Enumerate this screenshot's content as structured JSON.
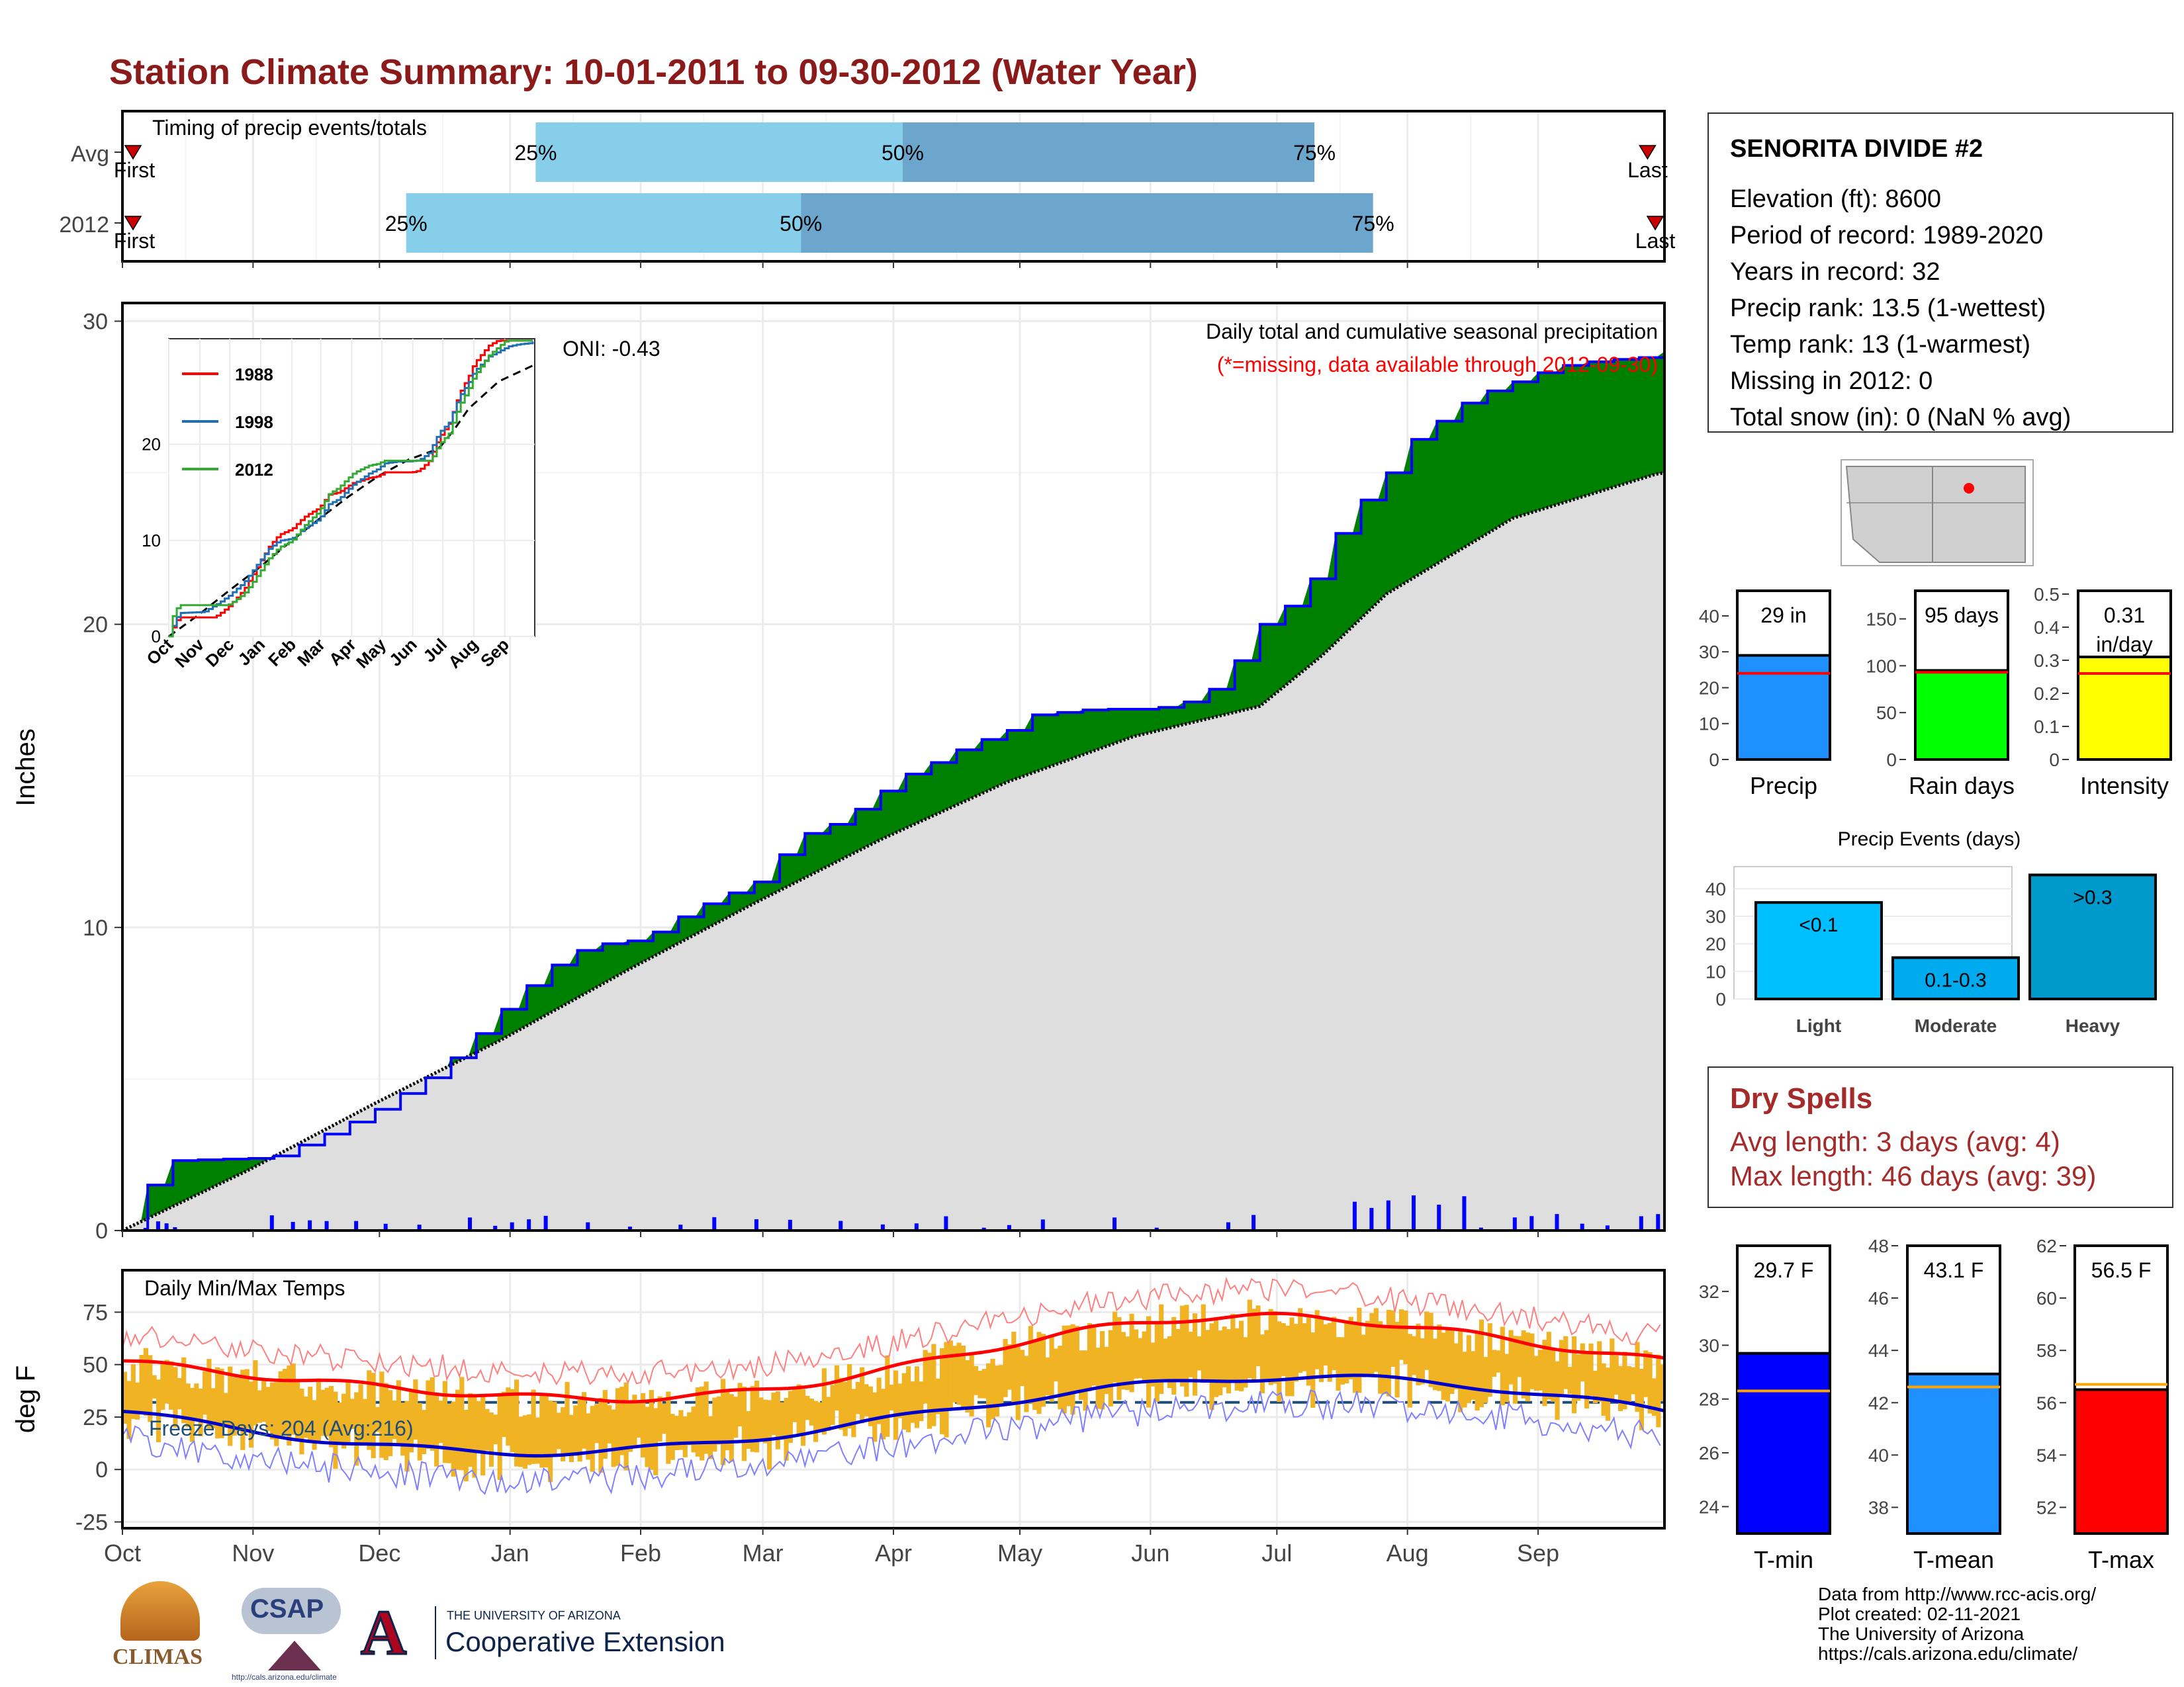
{
  "title": "Station Climate Summary: 10-01-2011 to 09-30-2012 (Water Year)",
  "colors": {
    "title": "#8b1a1a",
    "precip_fill": "#008000",
    "precip_line": "#0000ff",
    "avg_fill": "#dedede",
    "q_light": "#87ceeb",
    "q_dark": "#6ca6cd",
    "temp_bar": "#f0b323",
    "tmax_avg": "#ff0000",
    "tmin_avg": "#0000cd",
    "dry_text": "#a52a2a"
  },
  "months": [
    "Oct",
    "Nov",
    "Dec",
    "Jan",
    "Feb",
    "Mar",
    "Apr",
    "May",
    "Jun",
    "Jul",
    "Aug",
    "Sep"
  ],
  "timing": {
    "label": "Timing of precip events/totals",
    "rows": [
      {
        "label": "Avg",
        "q25": 0.268,
        "q50": 0.506,
        "q75": 0.773,
        "first_label": "First",
        "last_label": "Last",
        "first_pos": 0.0,
        "last_pos": 0.989
      },
      {
        "label": "2012",
        "q25": 0.184,
        "q50": 0.44,
        "q75": 0.811,
        "first_label": "First",
        "last_label": "Last",
        "first_pos": 0.0,
        "last_pos": 0.994
      }
    ],
    "q_labels": [
      "25%",
      "50%",
      "75%"
    ]
  },
  "precip_panel": {
    "ylabel": "Inches",
    "yticks": [
      0,
      10,
      20,
      30
    ],
    "ylim": [
      0,
      30.6
    ],
    "oni": "ONI: -0.43",
    "title": "Daily total and cumulative seasonal precipitation",
    "subtitle": "(*=missing, data available through 2012-09-30)"
  },
  "inset": {
    "yticks": [
      0,
      10,
      20
    ],
    "xlabels": [
      "Oct",
      "Nov",
      "Dec",
      "Jan",
      "Feb",
      "Mar",
      "Apr",
      "May",
      "Jun",
      "Jul",
      "Aug",
      "Sep"
    ],
    "legend": [
      {
        "name": "1988",
        "color": "#ff0000"
      },
      {
        "name": "1998",
        "color": "#1f6fb4"
      },
      {
        "name": "2012",
        "color": "#33aa33"
      }
    ]
  },
  "temp_panel": {
    "ylabel": "deg F",
    "title": "Daily Min/Max Temps",
    "freeze": "Freeze Days: 204 (Avg:216)",
    "yticks": [
      -25,
      0,
      25,
      50,
      75
    ],
    "ylim": [
      -28,
      95
    ]
  },
  "station": {
    "name": "SENORITA DIVIDE #2",
    "lines": [
      "Elevation (ft): 8600",
      "Period of record: 1989-2020",
      "Years in record: 32",
      "Precip rank: 13.5 (1-wettest)",
      "Temp rank: 13 (1-warmest)",
      "Missing in 2012: 0",
      "Total snow (in): 0 (NaN % avg)"
    ]
  },
  "summary_bars": [
    {
      "name": "Precip",
      "value": 29,
      "avg": 24,
      "label": "29 in",
      "ymax": 47,
      "ticks": [
        0,
        10,
        20,
        30,
        40
      ],
      "color": "#1e90ff"
    },
    {
      "name": "Rain days",
      "value": 95,
      "avg": 93,
      "label": "95 days",
      "ymax": 180,
      "ticks": [
        0,
        50,
        100,
        150
      ],
      "color": "#00ff00"
    },
    {
      "name": "Intensity",
      "value": 0.31,
      "avg": 0.26,
      "label": "0.31 in/day",
      "ymax": 0.51,
      "ticks": [
        0.0,
        0.1,
        0.2,
        0.3,
        0.4,
        0.5
      ],
      "color": "#ffff00"
    }
  ],
  "events": {
    "title": "Precip Events (days)",
    "ticks": [
      0,
      10,
      20,
      30,
      40
    ],
    "ymax": 48,
    "bars": [
      {
        "name": "Light",
        "value": 35,
        "label": "<0.1",
        "color": "#00bfff"
      },
      {
        "name": "Moderate",
        "value": 15,
        "label": "0.1-0.3",
        "color": "#00aaee"
      },
      {
        "name": "Heavy",
        "value": 45,
        "label": ">0.3",
        "color": "#0099cc"
      }
    ]
  },
  "dry_spells": {
    "title": "Dry Spells",
    "avg": "Avg length: 3 days (avg: 4)",
    "max": "Max length: 46 days (avg: 39)"
  },
  "temp_bars": [
    {
      "name": "T-min",
      "value": 29.7,
      "avg": 28.3,
      "label": "29.7 F",
      "ymin": 23,
      "ymax": 33.7,
      "ticks": [
        24,
        26,
        28,
        30,
        32
      ],
      "color": "#0000ff"
    },
    {
      "name": "T-mean",
      "value": 43.1,
      "avg": 42.6,
      "label": "43.1 F",
      "ymin": 37,
      "ymax": 48,
      "ticks": [
        38,
        40,
        42,
        44,
        46,
        48
      ],
      "color": "#1e90ff"
    },
    {
      "name": "T-max",
      "value": 56.5,
      "avg": 56.7,
      "label": "56.5 F",
      "ymin": 51,
      "ymax": 62,
      "ticks": [
        52,
        54,
        56,
        58,
        60,
        62
      ],
      "color": "#ff0000"
    }
  ],
  "credits": [
    "Data from http://www.rcc-acis.org/",
    "Plot created: 02-11-2021",
    "The University of Arizona",
    "https://cals.arizona.edu/climate/"
  ],
  "logos": {
    "climas": "CLIMAS",
    "csap": "CSAP",
    "csap_url": "http://cals.arizona.edu/climate",
    "ua_small": "THE UNIVERSITY OF ARIZONA",
    "ua_big": "Cooperative Extension",
    "ua_letter": "A"
  },
  "chart_data": {
    "type": "area",
    "title": "Daily total and cumulative seasonal precipitation",
    "ylabel": "Inches",
    "ylim": [
      0,
      30.6
    ],
    "series": [
      {
        "name": "2012",
        "x_day": [
          0,
          5,
          10,
          35,
          50,
          60,
          75,
          90,
          100,
          110,
          123,
          135,
          150,
          160,
          170,
          185,
          190,
          200,
          210,
          215,
          230,
          240,
          250,
          260,
          270,
          280,
          290,
          300,
          305,
          320,
          330,
          340,
          350,
          360,
          365
        ],
        "values": [
          0.0,
          1.3,
          2.3,
          2.4,
          3.3,
          4.0,
          5.3,
          7.3,
          8.6,
          9.4,
          9.6,
          10.6,
          11.5,
          13.0,
          13.5,
          15.0,
          15.3,
          16.0,
          16.5,
          17.0,
          17.2,
          17.2,
          17.3,
          18.0,
          20.0,
          21.0,
          23.5,
          25.0,
          26.0,
          27.5,
          28.0,
          28.5,
          28.7,
          28.8,
          29.0
        ]
      },
      {
        "x_day": [
          0,
          30,
          60,
          90,
          120,
          150,
          180,
          210,
          240,
          270,
          285,
          300,
          330,
          365
        ],
        "values": [
          0.0,
          2.0,
          4.2,
          6.3,
          8.6,
          10.8,
          12.9,
          14.8,
          16.3,
          17.3,
          19.0,
          21.0,
          23.5,
          25.0
        ]
      }
    ],
    "daily_precip_peak": 1.4
  }
}
